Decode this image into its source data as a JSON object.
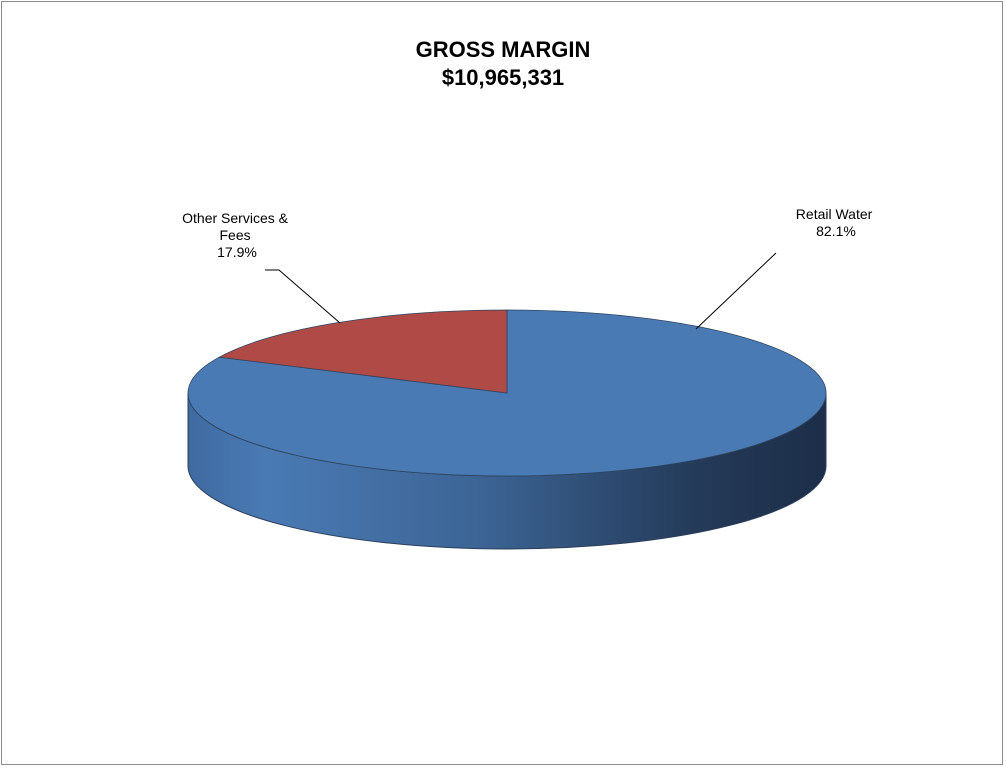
{
  "chart_data": {
    "type": "pie",
    "title": "GROSS MARGIN",
    "subtitle": "$10,965,331",
    "slices": [
      {
        "label_lines": [
          "Retail Water"
        ],
        "percent_label": "82.1%",
        "value": 82.1,
        "color": "#4a7ab4"
      },
      {
        "label_lines": [
          "Other Services &",
          "Fees"
        ],
        "percent_label": "17.9%",
        "value": 17.9,
        "color": "#b04a46"
      }
    ],
    "legend": "none",
    "style": "3d"
  }
}
